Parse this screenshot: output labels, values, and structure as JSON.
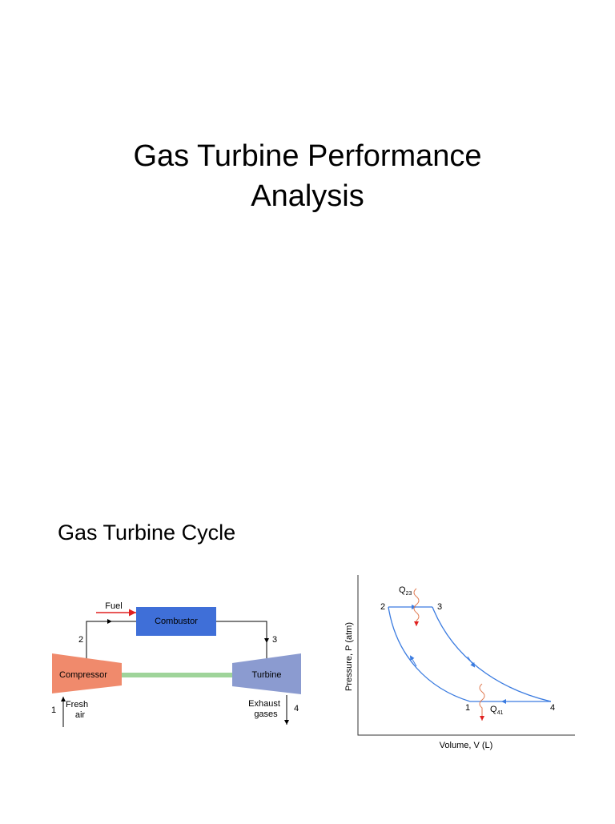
{
  "slide1": {
    "title_lines": [
      "Gas Turbine Performance",
      "Analysis"
    ]
  },
  "slide2": {
    "heading": "Gas Turbine Cycle",
    "schematic": {
      "fuel": "Fuel",
      "combustor": "Combustor",
      "compressor": "Compressor",
      "turbine": "Turbine",
      "states": [
        "1",
        "2",
        "3",
        "4"
      ],
      "inlet": [
        "Fresh",
        "air"
      ],
      "outlet": [
        "Exhaust",
        "gases"
      ]
    },
    "pv_diagram": {
      "x_label": "Volume, V (L)",
      "y_label": "Pressure, P (atm)",
      "states": [
        "1",
        "2",
        "3",
        "4"
      ],
      "heat_in": {
        "symbol": "Q",
        "subscript": "23"
      },
      "heat_out": {
        "symbol": "Q",
        "subscript": "41"
      }
    }
  }
}
